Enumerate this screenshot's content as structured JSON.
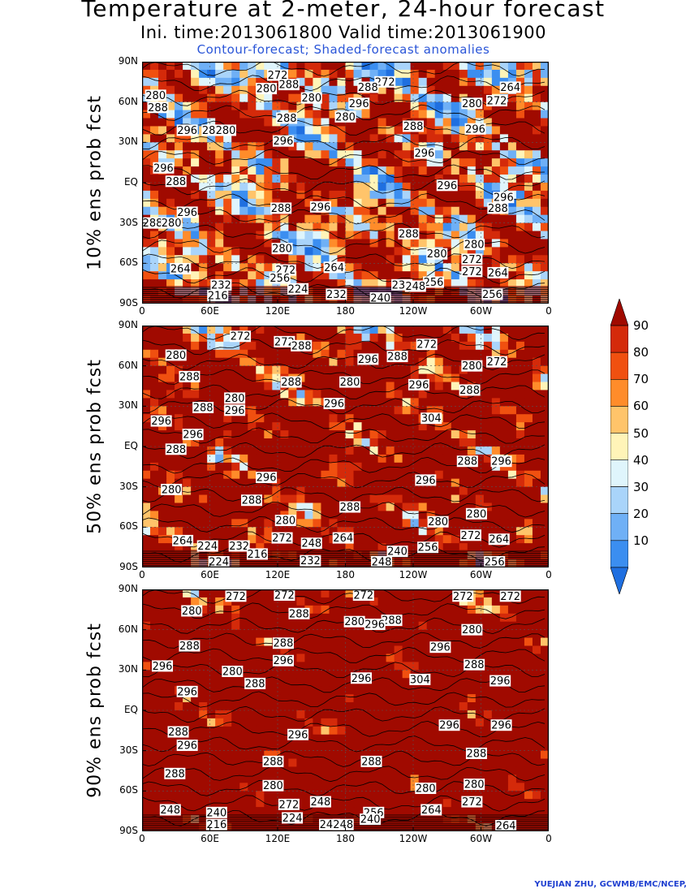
{
  "title": "Temperature at 2-meter, 24-hour forecast",
  "subtitle": "Ini. time:2013061800    Valid time:2013061900",
  "description": "Contour-forecast; Shaded-forecast anomalies",
  "credit": "YUEJIAN ZHU, GCWMB/EMC/NCEP,",
  "colors": {
    "subtitle_blue": "#2a55d8",
    "credit_blue": "#2040d0"
  },
  "chart_data": {
    "type": "heatmap",
    "x_ticks": [
      "0",
      "60E",
      "120E",
      "180",
      "120W",
      "60W",
      "0"
    ],
    "y_ticks": [
      "90N",
      "60N",
      "30N",
      "EQ",
      "30S",
      "60S",
      "90S"
    ],
    "colorbar": {
      "levels": [
        "10",
        "20",
        "30",
        "40",
        "50",
        "60",
        "70",
        "80",
        "90"
      ],
      "colors": [
        "#1f6fe0",
        "#3b8ef0",
        "#6fb0f6",
        "#a9d4fa",
        "#dff5fc",
        "#fff4b8",
        "#ffc46a",
        "#ff8c2a",
        "#f05010",
        "#d42a0a",
        "#a00a00"
      ]
    },
    "panels": [
      {
        "label": "10% ens prob fcst",
        "red_frac": 0.45,
        "contour_labels": [
          {
            "t": "272",
            "lon": 120,
            "lat": 80
          },
          {
            "t": "272",
            "lon": 215,
            "lat": 75
          },
          {
            "t": "264",
            "lon": 326,
            "lat": 71
          },
          {
            "t": "280",
            "lon": 12,
            "lat": 65
          },
          {
            "t": "280",
            "lon": 110,
            "lat": 70
          },
          {
            "t": "288",
            "lon": 130,
            "lat": 73
          },
          {
            "t": "288",
            "lon": 200,
            "lat": 71
          },
          {
            "t": "280",
            "lon": 150,
            "lat": 63
          },
          {
            "t": "296",
            "lon": 192,
            "lat": 59
          },
          {
            "t": "280",
            "lon": 292,
            "lat": 59
          },
          {
            "t": "272",
            "lon": 314,
            "lat": 61
          },
          {
            "t": "288",
            "lon": 14,
            "lat": 56
          },
          {
            "t": "288",
            "lon": 128,
            "lat": 48
          },
          {
            "t": "280",
            "lon": 180,
            "lat": 49
          },
          {
            "t": "288",
            "lon": 240,
            "lat": 42
          },
          {
            "t": "296",
            "lon": 295,
            "lat": 40
          },
          {
            "t": "296",
            "lon": 40,
            "lat": 39
          },
          {
            "t": "288",
            "lon": 62,
            "lat": 39
          },
          {
            "t": "280",
            "lon": 74,
            "lat": 39
          },
          {
            "t": "296",
            "lon": 125,
            "lat": 31
          },
          {
            "t": "296",
            "lon": 250,
            "lat": 22
          },
          {
            "t": "296",
            "lon": 19,
            "lat": 11
          },
          {
            "t": "288",
            "lon": 30,
            "lat": 1
          },
          {
            "t": "296",
            "lon": 270,
            "lat": -2
          },
          {
            "t": "296",
            "lon": 320,
            "lat": -11
          },
          {
            "t": "288",
            "lon": 315,
            "lat": -19
          },
          {
            "t": "296",
            "lon": 40,
            "lat": -22
          },
          {
            "t": "288",
            "lon": 123,
            "lat": -19
          },
          {
            "t": "296",
            "lon": 158,
            "lat": -18
          },
          {
            "t": "288",
            "lon": 5,
            "lat": -30
          },
          {
            "t": "280",
            "lon": 26,
            "lat": -30
          },
          {
            "t": "288",
            "lon": 236,
            "lat": -38
          },
          {
            "t": "280",
            "lon": 294,
            "lat": -46
          },
          {
            "t": "280",
            "lon": 124,
            "lat": -49
          },
          {
            "t": "280",
            "lon": 261,
            "lat": -53
          },
          {
            "t": "272",
            "lon": 292,
            "lat": -57
          },
          {
            "t": "264",
            "lon": 34,
            "lat": -64
          },
          {
            "t": "272",
            "lon": 127,
            "lat": -65
          },
          {
            "t": "264",
            "lon": 170,
            "lat": -63
          },
          {
            "t": "272",
            "lon": 292,
            "lat": -66
          },
          {
            "t": "264",
            "lon": 315,
            "lat": -67
          },
          {
            "t": "256",
            "lon": 122,
            "lat": -71
          },
          {
            "t": "232",
            "lon": 70,
            "lat": -76
          },
          {
            "t": "224",
            "lon": 138,
            "lat": -79
          },
          {
            "t": "256",
            "lon": 258,
            "lat": -74
          },
          {
            "t": "232",
            "lon": 230,
            "lat": -76
          },
          {
            "t": "248",
            "lon": 242,
            "lat": -77
          },
          {
            "t": "232",
            "lon": 172,
            "lat": -83
          },
          {
            "t": "216",
            "lon": 67,
            "lat": -84
          },
          {
            "t": "240",
            "lon": 211,
            "lat": -86
          },
          {
            "t": "256",
            "lon": 310,
            "lat": -83
          }
        ]
      },
      {
        "label": "50% ens prob fcst",
        "red_frac": 0.68,
        "contour_labels": [
          {
            "t": "272",
            "lon": 87,
            "lat": 82
          },
          {
            "t": "272",
            "lon": 126,
            "lat": 78
          },
          {
            "t": "288",
            "lon": 141,
            "lat": 75
          },
          {
            "t": "272",
            "lon": 252,
            "lat": 76
          },
          {
            "t": "280",
            "lon": 30,
            "lat": 68
          },
          {
            "t": "296",
            "lon": 200,
            "lat": 65
          },
          {
            "t": "288",
            "lon": 226,
            "lat": 67
          },
          {
            "t": "280",
            "lon": 292,
            "lat": 60
          },
          {
            "t": "272",
            "lon": 314,
            "lat": 63
          },
          {
            "t": "288",
            "lon": 42,
            "lat": 52
          },
          {
            "t": "288",
            "lon": 132,
            "lat": 48
          },
          {
            "t": "280",
            "lon": 184,
            "lat": 48
          },
          {
            "t": "296",
            "lon": 245,
            "lat": 46
          },
          {
            "t": "288",
            "lon": 290,
            "lat": 42
          },
          {
            "t": "280",
            "lon": 82,
            "lat": 36
          },
          {
            "t": "288",
            "lon": 54,
            "lat": 29
          },
          {
            "t": "296",
            "lon": 82,
            "lat": 27
          },
          {
            "t": "296",
            "lon": 170,
            "lat": 32
          },
          {
            "t": "304",
            "lon": 256,
            "lat": 21
          },
          {
            "t": "296",
            "lon": 17,
            "lat": 19
          },
          {
            "t": "296",
            "lon": 45,
            "lat": 9
          },
          {
            "t": "288",
            "lon": 30,
            "lat": -2
          },
          {
            "t": "288",
            "lon": 288,
            "lat": -11
          },
          {
            "t": "296",
            "lon": 318,
            "lat": -11
          },
          {
            "t": "296",
            "lon": 110,
            "lat": -23
          },
          {
            "t": "296",
            "lon": 251,
            "lat": -25
          },
          {
            "t": "280",
            "lon": 26,
            "lat": -32
          },
          {
            "t": "288",
            "lon": 97,
            "lat": -40
          },
          {
            "t": "288",
            "lon": 184,
            "lat": -45
          },
          {
            "t": "280",
            "lon": 127,
            "lat": -55
          },
          {
            "t": "280",
            "lon": 262,
            "lat": -56
          },
          {
            "t": "280",
            "lon": 296,
            "lat": -50
          },
          {
            "t": "272",
            "lon": 291,
            "lat": -66
          },
          {
            "t": "264",
            "lon": 316,
            "lat": -69
          },
          {
            "t": "264",
            "lon": 36,
            "lat": -70
          },
          {
            "t": "224",
            "lon": 58,
            "lat": -74
          },
          {
            "t": "232",
            "lon": 86,
            "lat": -74
          },
          {
            "t": "272",
            "lon": 124,
            "lat": -68
          },
          {
            "t": "248",
            "lon": 150,
            "lat": -72
          },
          {
            "t": "264",
            "lon": 178,
            "lat": -68
          },
          {
            "t": "256",
            "lon": 253,
            "lat": -75
          },
          {
            "t": "216",
            "lon": 102,
            "lat": -80
          },
          {
            "t": "240",
            "lon": 226,
            "lat": -78
          },
          {
            "t": "232",
            "lon": 149,
            "lat": -85
          },
          {
            "t": "248",
            "lon": 212,
            "lat": -87
          },
          {
            "t": "224",
            "lon": 68,
            "lat": -88
          },
          {
            "t": "256",
            "lon": 312,
            "lat": -86
          }
        ]
      },
      {
        "label": "90% ens prob fcst",
        "red_frac": 0.85,
        "contour_labels": [
          {
            "t": "272",
            "lon": 83,
            "lat": 85
          },
          {
            "t": "272",
            "lon": 126,
            "lat": 88
          },
          {
            "t": "272",
            "lon": 196,
            "lat": 88
          },
          {
            "t": "272",
            "lon": 284,
            "lat": 85
          },
          {
            "t": "272",
            "lon": 326,
            "lat": 85
          },
          {
            "t": "288",
            "lon": 139,
            "lat": 72
          },
          {
            "t": "280",
            "lon": 44,
            "lat": 74
          },
          {
            "t": "280",
            "lon": 188,
            "lat": 66
          },
          {
            "t": "288",
            "lon": 221,
            "lat": 67
          },
          {
            "t": "296",
            "lon": 206,
            "lat": 64
          },
          {
            "t": "280",
            "lon": 292,
            "lat": 60
          },
          {
            "t": "288",
            "lon": 42,
            "lat": 48
          },
          {
            "t": "288",
            "lon": 125,
            "lat": 50
          },
          {
            "t": "296",
            "lon": 264,
            "lat": 47
          },
          {
            "t": "296",
            "lon": 18,
            "lat": 33
          },
          {
            "t": "296",
            "lon": 125,
            "lat": 37
          },
          {
            "t": "288",
            "lon": 294,
            "lat": 34
          },
          {
            "t": "296",
            "lon": 317,
            "lat": 22
          },
          {
            "t": "280",
            "lon": 80,
            "lat": 29
          },
          {
            "t": "288",
            "lon": 100,
            "lat": 20
          },
          {
            "t": "296",
            "lon": 40,
            "lat": 14
          },
          {
            "t": "296",
            "lon": 194,
            "lat": 24
          },
          {
            "t": "304",
            "lon": 246,
            "lat": 23
          },
          {
            "t": "296",
            "lon": 272,
            "lat": -11
          },
          {
            "t": "296",
            "lon": 318,
            "lat": -11
          },
          {
            "t": "288",
            "lon": 32,
            "lat": -16
          },
          {
            "t": "296",
            "lon": 40,
            "lat": -26
          },
          {
            "t": "296",
            "lon": 138,
            "lat": -18
          },
          {
            "t": "288",
            "lon": 296,
            "lat": -32
          },
          {
            "t": "288",
            "lon": 29,
            "lat": -47
          },
          {
            "t": "288",
            "lon": 116,
            "lat": -38
          },
          {
            "t": "288",
            "lon": 203,
            "lat": -38
          },
          {
            "t": "280",
            "lon": 116,
            "lat": -56
          },
          {
            "t": "280",
            "lon": 251,
            "lat": -58
          },
          {
            "t": "280",
            "lon": 294,
            "lat": -55
          },
          {
            "t": "272",
            "lon": 292,
            "lat": -68
          },
          {
            "t": "248",
            "lon": 25,
            "lat": -74
          },
          {
            "t": "248",
            "lon": 158,
            "lat": -68
          },
          {
            "t": "264",
            "lon": 256,
            "lat": -74
          },
          {
            "t": "240",
            "lon": 66,
            "lat": -76
          },
          {
            "t": "272",
            "lon": 130,
            "lat": -70
          },
          {
            "t": "256",
            "lon": 205,
            "lat": -76
          },
          {
            "t": "224",
            "lon": 133,
            "lat": -80
          },
          {
            "t": "240",
            "lon": 166,
            "lat": -85
          },
          {
            "t": "248",
            "lon": 178,
            "lat": -85
          },
          {
            "t": "240",
            "lon": 202,
            "lat": -81
          },
          {
            "t": "216",
            "lon": 66,
            "lat": -85
          },
          {
            "t": "264",
            "lon": 322,
            "lat": -86
          }
        ]
      }
    ]
  }
}
